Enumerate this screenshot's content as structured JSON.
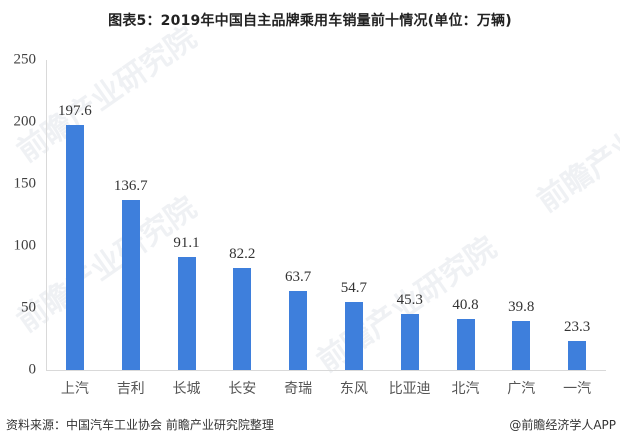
{
  "header": {
    "title": "图表5：2019年中国自主品牌乘用车销量前十情况(单位：万辆)"
  },
  "footer": {
    "source": "资料来源：中国汽车工业协会 前瞻产业研究院整理",
    "credit": "@前瞻经济学人APP"
  },
  "watermark": {
    "text": "前瞻产业研究院"
  },
  "colors": {
    "bar": "#3e7fdc",
    "axis": "#d9d9d9"
  },
  "chart_data": {
    "type": "bar",
    "title": "图表5：2019年中国自主品牌乘用车销量前十情况(单位：万辆)",
    "xlabel": "",
    "ylabel": "",
    "ylim": [
      0,
      250
    ],
    "yticks": [
      0,
      50,
      100,
      150,
      200,
      250
    ],
    "grid": false,
    "legend": null,
    "categories": [
      "上汽",
      "吉利",
      "长城",
      "长安",
      "奇瑞",
      "东风",
      "比亚迪",
      "北汽",
      "广汽",
      "一汽"
    ],
    "values": [
      197.6,
      136.7,
      91.1,
      82.2,
      63.7,
      54.7,
      45.3,
      40.8,
      39.8,
      23.3
    ],
    "data_labels": [
      "197.6",
      "136.7",
      "91.1",
      "82.2",
      "63.7",
      "54.7",
      "45.3",
      "40.8",
      "39.8",
      "23.3"
    ]
  }
}
